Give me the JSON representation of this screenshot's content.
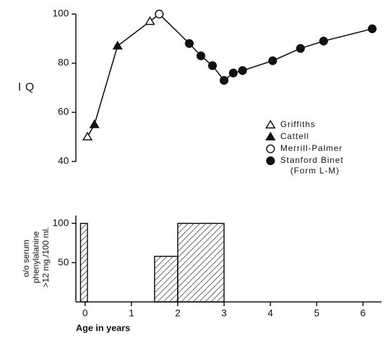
{
  "chart_data": [
    {
      "type": "line",
      "ylabel": "IQ",
      "xlim": [
        -0.2,
        6.4
      ],
      "ylim": [
        40,
        100
      ],
      "yticks": [
        40,
        60,
        80,
        100
      ],
      "legend": "right",
      "series": [
        {
          "name": "Griffiths",
          "color": "#111",
          "marker": "triangle-open",
          "x": [
            0.05,
            1.4
          ],
          "values": [
            50,
            97
          ]
        },
        {
          "name": "Cattell",
          "color": "#111",
          "marker": "triangle-filled",
          "x": [
            0.2,
            0.7
          ],
          "values": [
            55,
            87
          ]
        },
        {
          "name": "Merrill-Palmer",
          "color": "#111",
          "marker": "circle-open",
          "x": [
            1.6
          ],
          "values": [
            100
          ]
        },
        {
          "name": "Stanford Binet (Form L-M)",
          "color": "#111",
          "marker": "circle-filled",
          "x": [
            2.25,
            2.5,
            2.75,
            3.0,
            3.2,
            3.4,
            4.05,
            4.65,
            5.15,
            6.2
          ],
          "values": [
            88,
            83,
            79,
            73,
            76,
            77,
            81,
            86,
            89,
            94
          ]
        }
      ]
    },
    {
      "type": "histogram",
      "ylabel": "o/o serum phenylalanine >12 mg./100 ml.",
      "xlabel": "Age in years",
      "xlim": [
        -0.2,
        6.4
      ],
      "xticks": [
        0,
        1,
        2,
        3,
        4,
        5,
        6
      ],
      "ylim": [
        0,
        110
      ],
      "yticks": [
        50,
        100
      ],
      "bins": [
        -0.1,
        0.05,
        1.5,
        2,
        3
      ],
      "values": [
        100,
        0,
        58,
        100
      ],
      "color": "#111",
      "hatch": true
    }
  ]
}
